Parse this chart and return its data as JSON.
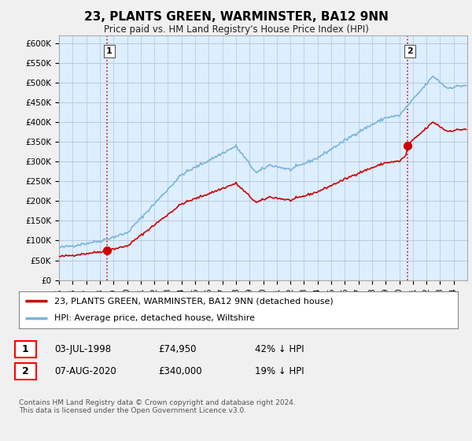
{
  "title": "23, PLANTS GREEN, WARMINSTER, BA12 9NN",
  "subtitle": "Price paid vs. HM Land Registry's House Price Index (HPI)",
  "ylim": [
    0,
    620000
  ],
  "yticks": [
    0,
    50000,
    100000,
    150000,
    200000,
    250000,
    300000,
    350000,
    400000,
    450000,
    500000,
    550000,
    600000
  ],
  "ytick_labels": [
    "£0",
    "£50K",
    "£100K",
    "£150K",
    "£200K",
    "£250K",
    "£300K",
    "£350K",
    "£400K",
    "£450K",
    "£500K",
    "£550K",
    "£600K"
  ],
  "xlim_start": 1995.0,
  "xlim_end": 2025.0,
  "hpi_color": "#7ab4d8",
  "price_color": "#cc0000",
  "sale1_year": 1998.5,
  "sale1_price": 74950,
  "sale2_year": 2020.583,
  "sale2_price": 340000,
  "legend_line1": "23, PLANTS GREEN, WARMINSTER, BA12 9NN (detached house)",
  "legend_line2": "HPI: Average price, detached house, Wiltshire",
  "note1_date": "03-JUL-1998",
  "note1_price": "£74,950",
  "note1_hpi": "42% ↓ HPI",
  "note2_date": "07-AUG-2020",
  "note2_price": "£340,000",
  "note2_hpi": "19% ↓ HPI",
  "footer": "Contains HM Land Registry data © Crown copyright and database right 2024.\nThis data is licensed under the Open Government Licence v3.0.",
  "bg_color": "#f0f0f0",
  "plot_bg_color": "#ddeeff",
  "grid_color": "#bbccdd"
}
